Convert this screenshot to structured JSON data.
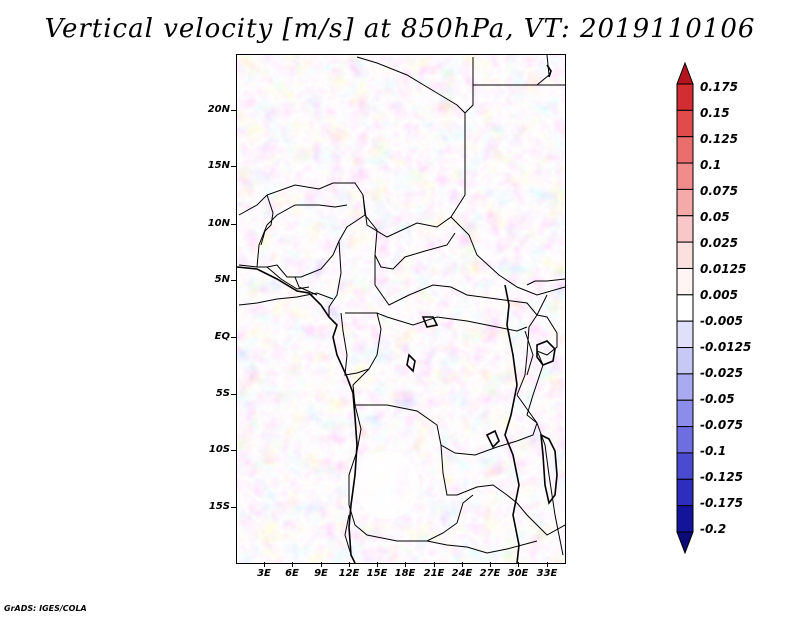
{
  "title": "Vertical velocity [m/s] at 850hPa, VT: 2019110106",
  "credit": "GrADS: IGES/COLA",
  "map": {
    "y_axis_labels": [
      "20N",
      "15N",
      "10N",
      "5N",
      "EQ",
      "5S",
      "10S",
      "15S"
    ],
    "x_axis_labels": [
      "3E",
      "6E",
      "9E",
      "12E",
      "15E",
      "18E",
      "21E",
      "24E",
      "27E",
      "30E",
      "33E"
    ]
  },
  "colorbar": {
    "labels": [
      "0.175",
      "0.15",
      "0.125",
      "0.1",
      "0.075",
      "0.05",
      "0.025",
      "0.0125",
      "0.005",
      "-0.005",
      "-0.0125",
      "-0.025",
      "-0.05",
      "-0.075",
      "-0.1",
      "-0.125",
      "-0.175",
      "-0.2"
    ],
    "colors": [
      "#b4141e",
      "#d22d32",
      "#e14b4b",
      "#eb6e6e",
      "#f08c8c",
      "#f5aaaa",
      "#f8c8c8",
      "#fbe0e0",
      "#fff5f5",
      "#ffffff",
      "#e0e0fb",
      "#c8c8f5",
      "#aaaaf0",
      "#8c8ceb",
      "#6e6ee1",
      "#4b4bd2",
      "#2d2dbe",
      "#14149b",
      "#0a0a78"
    ]
  }
}
